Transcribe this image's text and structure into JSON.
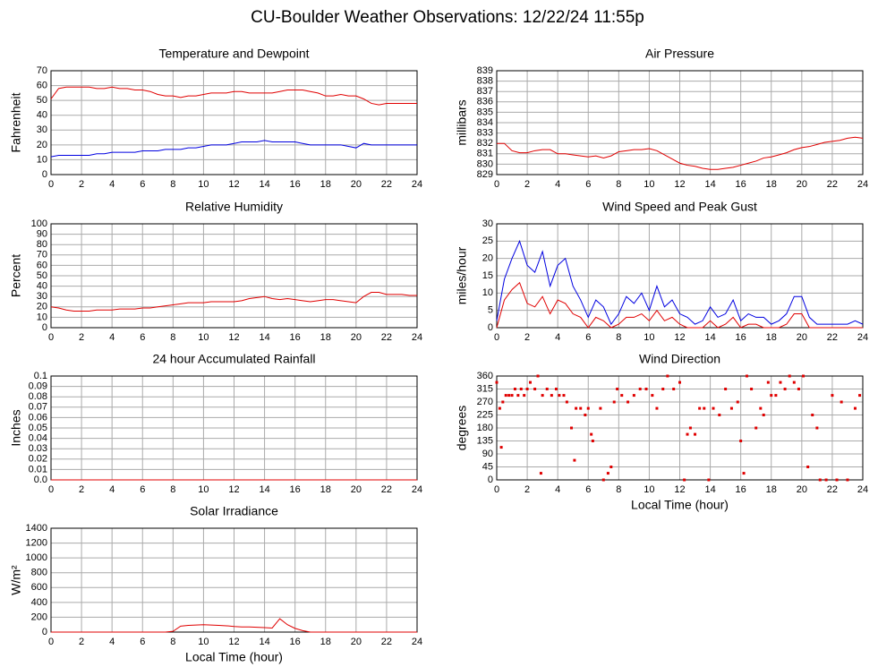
{
  "title": "CU-Boulder Weather Observations: 12/22/24 11:55p",
  "chart_data": [
    {
      "type": "line",
      "title": "Temperature and Dewpoint",
      "y_label": "Fahrenheit",
      "grid": true,
      "xlim": [
        0,
        24
      ],
      "xticks": [
        0,
        2,
        4,
        6,
        8,
        10,
        12,
        14,
        16,
        18,
        20,
        22,
        24
      ],
      "ylim": [
        0,
        70
      ],
      "yticks": [
        0,
        10,
        20,
        30,
        40,
        50,
        60,
        70
      ],
      "x": [
        0,
        0.5,
        1,
        1.5,
        2,
        2.5,
        3,
        3.5,
        4,
        4.5,
        5,
        5.5,
        6,
        6.5,
        7,
        7.5,
        8,
        8.5,
        9,
        9.5,
        10,
        10.5,
        11,
        11.5,
        12,
        12.5,
        13,
        13.5,
        14,
        14.5,
        15,
        15.5,
        16,
        16.5,
        17,
        17.5,
        18,
        18.5,
        19,
        19.5,
        20,
        20.5,
        21,
        21.5,
        22,
        22.5,
        23,
        23.5,
        24
      ],
      "series": [
        {
          "color": "#e00000",
          "values": [
            51,
            58,
            59,
            59,
            59,
            59,
            58,
            58,
            59,
            58,
            58,
            57,
            57,
            56,
            54,
            53,
            53,
            52,
            53,
            53,
            54,
            55,
            55,
            55,
            56,
            56,
            55,
            55,
            55,
            55,
            56,
            57,
            57,
            57,
            56,
            55,
            53,
            53,
            54,
            53,
            53,
            51,
            48,
            47,
            48,
            48,
            48,
            48,
            48
          ]
        },
        {
          "color": "#0000e0",
          "values": [
            12,
            13,
            13,
            13,
            13,
            13,
            14,
            14,
            15,
            15,
            15,
            15,
            16,
            16,
            16,
            17,
            17,
            17,
            18,
            18,
            19,
            20,
            20,
            20,
            21,
            22,
            22,
            22,
            23,
            22,
            22,
            22,
            22,
            21,
            20,
            20,
            20,
            20,
            20,
            19,
            18,
            21,
            20,
            20,
            20,
            20,
            20,
            20,
            20
          ]
        }
      ]
    },
    {
      "type": "line",
      "title": "Air Pressure",
      "y_label": "millibars",
      "grid": true,
      "xlim": [
        0,
        24
      ],
      "xticks": [
        0,
        2,
        4,
        6,
        8,
        10,
        12,
        14,
        16,
        18,
        20,
        22,
        24
      ],
      "ylim": [
        829,
        839
      ],
      "yticks": [
        829,
        830,
        831,
        832,
        833,
        834,
        835,
        836,
        837,
        838,
        839
      ],
      "x": [
        0,
        0.5,
        1,
        1.5,
        2,
        2.5,
        3,
        3.5,
        4,
        4.5,
        5,
        5.5,
        6,
        6.5,
        7,
        7.5,
        8,
        8.5,
        9,
        9.5,
        10,
        10.5,
        11,
        11.5,
        12,
        12.5,
        13,
        13.5,
        14,
        14.5,
        15,
        15.5,
        16,
        16.5,
        17,
        17.5,
        18,
        18.5,
        19,
        19.5,
        20,
        20.5,
        21,
        21.5,
        22,
        22.5,
        23,
        23.5,
        24
      ],
      "series": [
        {
          "color": "#e00000",
          "values": [
            832,
            832,
            831.3,
            831.1,
            831.1,
            831.3,
            831.4,
            831.4,
            831,
            831,
            830.9,
            830.8,
            830.7,
            830.8,
            830.6,
            830.8,
            831.2,
            831.3,
            831.4,
            831.4,
            831.5,
            831.3,
            830.9,
            830.5,
            830.1,
            829.9,
            829.8,
            829.6,
            829.5,
            829.5,
            829.6,
            829.7,
            829.9,
            830.1,
            830.3,
            830.6,
            830.7,
            830.9,
            831.1,
            831.4,
            831.6,
            831.7,
            831.9,
            832.1,
            832.2,
            832.3,
            832.5,
            832.6,
            832.5
          ]
        }
      ]
    },
    {
      "type": "line",
      "title": "Relative Humidity",
      "y_label": "Percent",
      "grid": true,
      "xlim": [
        0,
        24
      ],
      "xticks": [
        0,
        2,
        4,
        6,
        8,
        10,
        12,
        14,
        16,
        18,
        20,
        22,
        24
      ],
      "ylim": [
        0,
        100
      ],
      "yticks": [
        0,
        10,
        20,
        30,
        40,
        50,
        60,
        70,
        80,
        90,
        100
      ],
      "x": [
        0,
        0.5,
        1,
        1.5,
        2,
        2.5,
        3,
        3.5,
        4,
        4.5,
        5,
        5.5,
        6,
        6.5,
        7,
        7.5,
        8,
        8.5,
        9,
        9.5,
        10,
        10.5,
        11,
        11.5,
        12,
        12.5,
        13,
        13.5,
        14,
        14.5,
        15,
        15.5,
        16,
        16.5,
        17,
        17.5,
        18,
        18.5,
        19,
        19.5,
        20,
        20.5,
        21,
        21.5,
        22,
        22.5,
        23,
        23.5,
        24
      ],
      "series": [
        {
          "color": "#e00000",
          "values": [
            20,
            19,
            17,
            16,
            16,
            16,
            17,
            17,
            17,
            18,
            18,
            18,
            19,
            19,
            20,
            21,
            22,
            23,
            24,
            24,
            24,
            25,
            25,
            25,
            25,
            26,
            28,
            29,
            30,
            28,
            27,
            28,
            27,
            26,
            25,
            26,
            27,
            27,
            26,
            25,
            24,
            30,
            34,
            34,
            32,
            32,
            32,
            31,
            31
          ]
        }
      ]
    },
    {
      "type": "line",
      "title": "Wind Speed and Peak Gust",
      "y_label": "miles/hour",
      "grid": true,
      "xlim": [
        0,
        24
      ],
      "xticks": [
        0,
        2,
        4,
        6,
        8,
        10,
        12,
        14,
        16,
        18,
        20,
        22,
        24
      ],
      "ylim": [
        0,
        30
      ],
      "yticks": [
        0,
        5,
        10,
        15,
        20,
        25,
        30
      ],
      "x": [
        0,
        0.5,
        1,
        1.5,
        2,
        2.5,
        3,
        3.5,
        4,
        4.5,
        5,
        5.5,
        6,
        6.5,
        7,
        7.5,
        8,
        8.5,
        9,
        9.5,
        10,
        10.5,
        11,
        11.5,
        12,
        12.5,
        13,
        13.5,
        14,
        14.5,
        15,
        15.5,
        16,
        16.5,
        17,
        17.5,
        18,
        18.5,
        19,
        19.5,
        20,
        20.5,
        21,
        21.5,
        22,
        22.5,
        23,
        23.5,
        24
      ],
      "series": [
        {
          "color": "#0000e0",
          "values": [
            2,
            14,
            20,
            25,
            18,
            16,
            22,
            12,
            18,
            20,
            12,
            8,
            3,
            8,
            6,
            1,
            4,
            9,
            7,
            10,
            5,
            12,
            6,
            8,
            4,
            3,
            1,
            2,
            6,
            3,
            4,
            8,
            2,
            4,
            3,
            3,
            1,
            2,
            4,
            9,
            9,
            3,
            1,
            1,
            1,
            1,
            1,
            2,
            1
          ]
        },
        {
          "color": "#e00000",
          "values": [
            0,
            8,
            11,
            13,
            7,
            6,
            9,
            4,
            8,
            7,
            4,
            3,
            0,
            3,
            2,
            0,
            1,
            3,
            3,
            4,
            2,
            5,
            2,
            3,
            1,
            0,
            0,
            0,
            2,
            0,
            1,
            3,
            0,
            1,
            1,
            0,
            0,
            0,
            1,
            4,
            4,
            0,
            0,
            0,
            0,
            0,
            0,
            0,
            0
          ]
        }
      ]
    },
    {
      "type": "line",
      "title": "24 hour Accumulated Rainfall",
      "y_label": "Inches",
      "grid": true,
      "xlim": [
        0,
        24
      ],
      "xticks": [
        0,
        2,
        4,
        6,
        8,
        10,
        12,
        14,
        16,
        18,
        20,
        22,
        24
      ],
      "ylim": [
        0,
        0.1
      ],
      "yticks": [
        {
          "value": 0,
          "label": "0.0"
        },
        0.01,
        0.02,
        0.03,
        0.04,
        0.05,
        0.06,
        0.07,
        0.08,
        0.09,
        0.1
      ],
      "x": [
        0,
        1,
        2,
        3,
        4,
        5,
        6,
        7,
        8,
        9,
        10,
        11,
        12,
        13,
        14,
        15,
        16,
        17,
        18,
        19,
        20,
        21,
        22,
        23,
        24
      ],
      "series": [
        {
          "color": "#e00000",
          "values": [
            0,
            0,
            0,
            0,
            0,
            0,
            0,
            0,
            0,
            0,
            0,
            0,
            0,
            0,
            0,
            0,
            0,
            0,
            0,
            0,
            0,
            0,
            0,
            0,
            0
          ]
        }
      ]
    },
    {
      "type": "scatter",
      "title": "Wind Direction",
      "y_label": "degrees",
      "x_label": "Local Time (hour)",
      "grid": true,
      "xlim": [
        0,
        24
      ],
      "xticks": [
        0,
        2,
        4,
        6,
        8,
        10,
        12,
        14,
        16,
        18,
        20,
        22,
        24
      ],
      "ylim": [
        0,
        360
      ],
      "yticks": [
        0,
        45,
        90,
        135,
        180,
        225,
        270,
        315,
        360
      ],
      "color": "#e00000",
      "x": [
        0,
        0.2,
        0.3,
        0.4,
        0.6,
        0.8,
        1,
        1.2,
        1.4,
        1.6,
        1.8,
        2,
        2.2,
        2.5,
        2.7,
        2.9,
        3,
        3.3,
        3.6,
        3.9,
        4.1,
        4.4,
        4.6,
        4.9,
        5.1,
        5.2,
        5.5,
        5.8,
        6,
        6.2,
        6.3,
        6.8,
        7,
        7.3,
        7.5,
        7.7,
        7.9,
        8.2,
        8.6,
        9,
        9.4,
        9.8,
        10.2,
        10.5,
        10.9,
        11.2,
        11.6,
        12,
        12.3,
        12.5,
        12.7,
        13,
        13.3,
        13.6,
        13.9,
        14.2,
        14.6,
        15,
        15.4,
        15.8,
        16,
        16.2,
        16.4,
        16.7,
        17,
        17.3,
        17.5,
        17.8,
        18,
        18.3,
        18.6,
        18.9,
        19.2,
        19.5,
        19.8,
        20.1,
        20.4,
        20.7,
        21,
        21.2,
        21.6,
        22,
        22.3,
        22.6,
        23,
        23.5,
        23.8
      ],
      "y": [
        338,
        248,
        113,
        270,
        293,
        293,
        293,
        315,
        293,
        315,
        293,
        315,
        338,
        315,
        360,
        23,
        293,
        315,
        293,
        315,
        293,
        293,
        270,
        180,
        68,
        248,
        248,
        225,
        248,
        158,
        135,
        248,
        0,
        23,
        45,
        270,
        315,
        293,
        270,
        293,
        315,
        315,
        293,
        248,
        315,
        360,
        315,
        338,
        0,
        158,
        180,
        158,
        248,
        248,
        0,
        248,
        225,
        315,
        248,
        270,
        135,
        23,
        360,
        315,
        180,
        248,
        225,
        338,
        293,
        293,
        338,
        315,
        360,
        338,
        315,
        360,
        45,
        225,
        180,
        0,
        0,
        293,
        0,
        270,
        0,
        248,
        293
      ]
    },
    {
      "type": "line",
      "title": "Solar Irradiance",
      "y_label": "W/m²",
      "x_label": "Local Time (hour)",
      "grid": true,
      "xlim": [
        0,
        24
      ],
      "xticks": [
        0,
        2,
        4,
        6,
        8,
        10,
        12,
        14,
        16,
        18,
        20,
        22,
        24
      ],
      "ylim": [
        0,
        1400
      ],
      "yticks": [
        0,
        200,
        400,
        600,
        800,
        1000,
        1200,
        1400
      ],
      "x": [
        0,
        0.5,
        1,
        1.5,
        2,
        2.5,
        3,
        3.5,
        4,
        4.5,
        5,
        5.5,
        6,
        6.5,
        7,
        7.5,
        8,
        8.5,
        9,
        9.5,
        10,
        10.5,
        11,
        11.5,
        12,
        12.5,
        13,
        13.5,
        14,
        14.5,
        15,
        15.5,
        16,
        16.5,
        17,
        17.5,
        18,
        18.5,
        19,
        19.5,
        20,
        20.5,
        21,
        21.5,
        22,
        22.5,
        23,
        23.5,
        24
      ],
      "series": [
        {
          "color": "#e00000",
          "values": [
            0,
            0,
            0,
            0,
            0,
            0,
            0,
            0,
            0,
            0,
            0,
            0,
            0,
            0,
            0,
            0,
            10,
            80,
            90,
            95,
            100,
            95,
            90,
            85,
            75,
            70,
            70,
            65,
            60,
            55,
            180,
            100,
            50,
            20,
            0,
            0,
            0,
            0,
            0,
            0,
            0,
            0,
            0,
            0,
            0,
            0,
            0,
            0,
            0
          ]
        }
      ]
    }
  ]
}
